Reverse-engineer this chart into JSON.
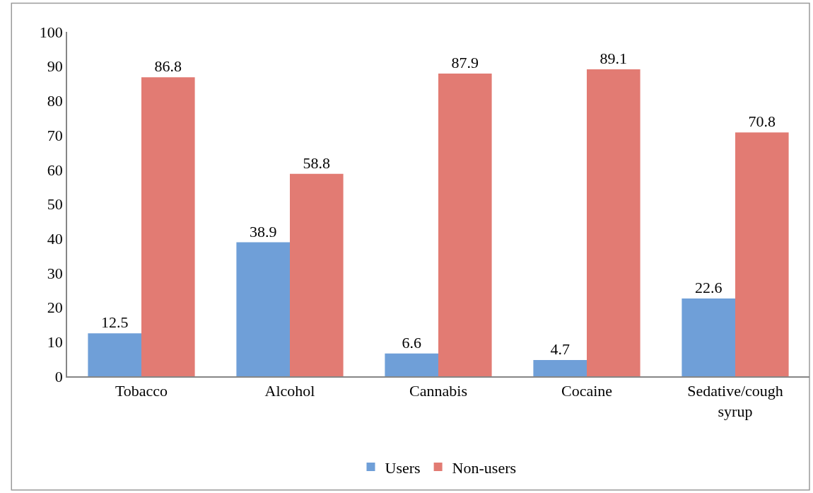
{
  "chart_data": {
    "type": "bar",
    "categories": [
      "Tobacco",
      "Alcohol",
      "Cannabis",
      "Cocaine",
      "Sedative/cough syrup"
    ],
    "series": [
      {
        "name": "Users",
        "color": "#6f9fd8",
        "values": [
          12.5,
          38.9,
          6.6,
          4.7,
          22.6
        ]
      },
      {
        "name": "Non-users",
        "color": "#e27b73",
        "values": [
          86.8,
          58.8,
          87.9,
          89.1,
          70.8
        ]
      }
    ],
    "ylim": [
      0,
      100
    ],
    "yticks": [
      0,
      10,
      20,
      30,
      40,
      50,
      60,
      70,
      80,
      90,
      100
    ],
    "data_labels": true,
    "grid": false,
    "legend": "bottom"
  }
}
